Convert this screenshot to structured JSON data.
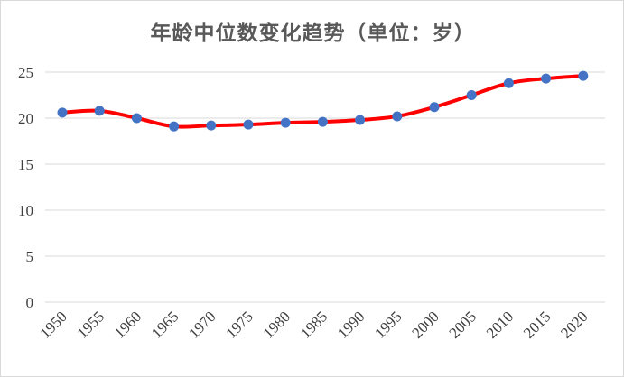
{
  "chart_data": {
    "type": "line",
    "title": "年龄中位数变化趋势（单位：岁）",
    "xlabel": "",
    "ylabel": "",
    "categories": [
      "1950",
      "1955",
      "1960",
      "1965",
      "1970",
      "1975",
      "1980",
      "1985",
      "1990",
      "1995",
      "2000",
      "2005",
      "2010",
      "2015",
      "2020"
    ],
    "series": [
      {
        "values": [
          20.6,
          20.8,
          20.0,
          19.1,
          19.2,
          19.3,
          19.5,
          19.6,
          19.8,
          20.2,
          21.2,
          22.5,
          23.8,
          24.3,
          24.6
        ]
      }
    ],
    "y_ticks": [
      "0",
      "5",
      "10",
      "15",
      "20",
      "25"
    ],
    "ylim": [
      0,
      27
    ],
    "grid": "horizontal",
    "legend": "none",
    "colors": {
      "line": "#ff0000",
      "marker": "#4472c4",
      "grid": "#d9d9d9",
      "text": "#595959"
    },
    "smooth": true
  }
}
